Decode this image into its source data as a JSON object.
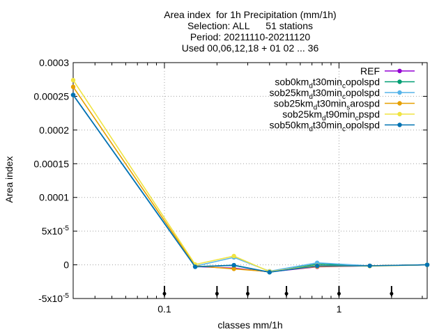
{
  "chart_data": {
    "type": "line",
    "title_lines": [
      "Area index  for 1h Precipitation (mm/1h)",
      "Selection: ALL      51 stations",
      "Period: 20211110-20211120",
      "Used 00,06,12,18 + 01 02 ... 36"
    ],
    "xlabel": "classes mm/1h",
    "ylabel": "Area index",
    "x_scale": "log",
    "xlim": [
      0.03,
      3.2
    ],
    "ylim": [
      -5e-05,
      0.0003
    ],
    "x_ticks": [
      {
        "value": 0.1,
        "label": "0.1"
      },
      {
        "value": 1,
        "label": "1"
      }
    ],
    "y_ticks": [
      {
        "value": 0.0003,
        "label": "0.0003"
      },
      {
        "value": 0.00025,
        "label": "0.00025"
      },
      {
        "value": 0.0002,
        "label": "0.0002"
      },
      {
        "value": 0.00015,
        "label": "0.00015"
      },
      {
        "value": 0.0001,
        "label": "0.0001"
      },
      {
        "value": 5e-05,
        "label": "5x10",
        "sup": "-5"
      },
      {
        "value": 0,
        "label": "0"
      },
      {
        "value": -5e-05,
        "label": "-5x10",
        "sup": "-5"
      }
    ],
    "grid": true,
    "legend_position": "top-right",
    "class_markers": [
      0.1,
      0.2,
      0.3,
      0.5,
      1,
      2
    ],
    "x": [
      0.03,
      0.15,
      0.25,
      0.4,
      0.75,
      1.5,
      3.2
    ],
    "series": [
      {
        "legend": {
          "parts": [
            {
              "t": "REF"
            }
          ]
        },
        "color": "#9400d3",
        "marker": "circle",
        "values": [
          0.000252,
          -2.5e-06,
          -5e-06,
          -1.05e-05,
          -3e-06,
          -1.5e-06,
          0
        ]
      },
      {
        "legend": {
          "parts": [
            {
              "t": "sob0km"
            },
            {
              "t": "d",
              "sub": true
            },
            {
              "t": "t30min"
            },
            {
              "t": "c",
              "sub": true
            },
            {
              "t": "opolspd"
            }
          ]
        },
        "color": "#009e73",
        "marker": "circle",
        "values": [
          0.000252,
          -2.5e-06,
          -1e-06,
          -1.1e-05,
          1e-06,
          -1.5e-06,
          0
        ]
      },
      {
        "legend": {
          "parts": [
            {
              "t": "sob25km"
            },
            {
              "t": "d",
              "sub": true
            },
            {
              "t": "t30min"
            },
            {
              "t": "c",
              "sub": true
            },
            {
              "t": "opolspd"
            }
          ]
        },
        "color": "#56b4e9",
        "marker": "circle",
        "values": [
          0.000252,
          -2e-06,
          1.1e-05,
          -9.5e-06,
          3e-06,
          -1.5e-06,
          0
        ]
      },
      {
        "legend": {
          "parts": [
            {
              "t": "sob25km"
            },
            {
              "t": "d",
              "sub": true
            },
            {
              "t": "t30min"
            },
            {
              "t": "s",
              "sub": true
            },
            {
              "t": "arospd"
            }
          ]
        },
        "color": "#e69f00",
        "marker": "circle",
        "values": [
          0.000264,
          -1.5e-06,
          -6e-06,
          -1e-05,
          -2.5e-06,
          -1.5e-06,
          0
        ]
      },
      {
        "legend": {
          "parts": [
            {
              "t": "sob25km"
            },
            {
              "t": "d",
              "sub": true
            },
            {
              "t": "t90min"
            },
            {
              "t": "c",
              "sub": true
            },
            {
              "t": "pspd"
            }
          ]
        },
        "color": "#f0e442",
        "marker": "circle",
        "values": [
          0.000274,
          5e-07,
          1.3e-05,
          -1e-05,
          -1e-06,
          -2e-06,
          0
        ]
      },
      {
        "legend": {
          "parts": [
            {
              "t": "sob50km"
            },
            {
              "t": "d",
              "sub": true
            },
            {
              "t": "t30min"
            },
            {
              "t": "c",
              "sub": true
            },
            {
              "t": "opolspd"
            }
          ]
        },
        "color": "#0072b2",
        "marker": "circle",
        "values": [
          0.000252,
          -3e-06,
          -5e-07,
          -1.1e-05,
          -1.5e-06,
          -1.5e-06,
          0
        ]
      }
    ]
  }
}
